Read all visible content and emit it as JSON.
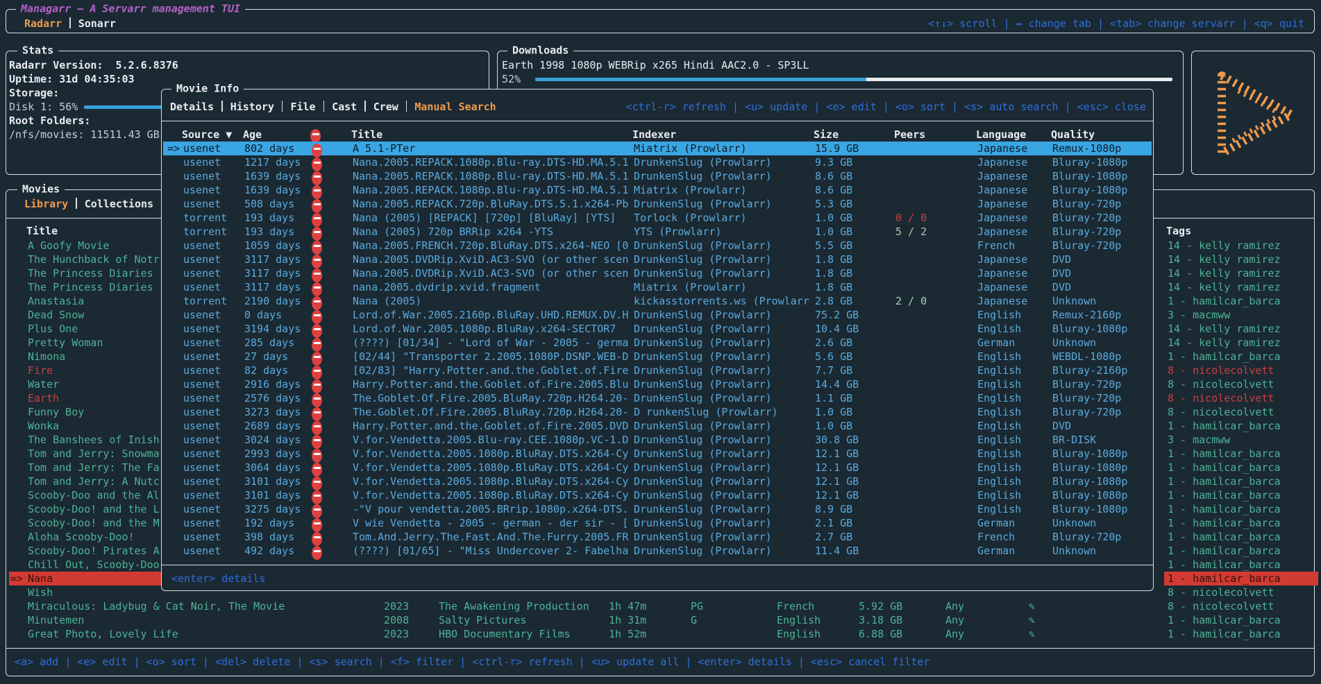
{
  "colors": {
    "background": "#1b2933",
    "border": "#d9dfe4",
    "accent_orange": "#f09b4b",
    "keybind_blue": "#2f6fdb",
    "row_blue": "#5aabdd",
    "selected_row_bg": "#3aa5e3",
    "teal": "#4db397",
    "red": "#c64242",
    "selected_missing_bg": "#d23b32",
    "magenta": "#b561c9",
    "progress_blue": "#38a0d9"
  },
  "top_bar": {
    "title": "Managarr – A Servarr management TUI",
    "tabs": [
      {
        "label": "Radarr",
        "active": true
      },
      {
        "label": "Sonarr",
        "active": false
      }
    ],
    "help": "<↑↓> scroll | ↔ change tab | <tab> change servarr | <q> quit"
  },
  "stats": {
    "panel_title": "Stats",
    "version_label": "Radarr Version:",
    "version_value": "5.2.6.8376",
    "uptime_label": "Uptime:",
    "uptime_value": "31d 04:35:03",
    "storage_label": "Storage:",
    "disk_label": "Disk 1: 56%",
    "disk_percent": 56,
    "root_folders_label": "Root Folders:",
    "root_folder_value": "/nfs/movies: 11511.43 GB"
  },
  "downloads": {
    "panel_title": "Downloads",
    "item_title": "Earth 1998 1080p WEBRip x265 Hindi AAC2.0 - SP3LL",
    "progress_label": "52%",
    "progress_percent": 52
  },
  "logo_icon": "managarr-play-logo",
  "movies_panel": {
    "panel_title": "Movies",
    "tabs": [
      {
        "label": "Library",
        "active": true
      },
      {
        "label": "Collections",
        "active": false
      }
    ],
    "columns": {
      "title": "Title",
      "tags": "Tags"
    },
    "help": "<a> add | <e> edit | <o> sort | <del> delete | <s> search | <f> filter | <ctrl-r> refresh | <u> update all | <enter> details | <esc> cancel filter",
    "rows": [
      {
        "title": "A Goofy Movie",
        "tag": "14 - kelly ramirez"
      },
      {
        "title": "The Hunchback of Notr",
        "tag": "14 - kelly ramirez"
      },
      {
        "title": "The Princess Diaries",
        "tag": "14 - kelly ramirez"
      },
      {
        "title": "The Princess Diaries",
        "tag": "14 - kelly ramirez"
      },
      {
        "title": "Anastasia",
        "tag": "1 - hamilcar_barca"
      },
      {
        "title": "Dead Snow",
        "tag": "3 - macmww"
      },
      {
        "title": "Plus One",
        "tag": "14 - kelly ramirez"
      },
      {
        "title": "Pretty Woman",
        "tag": "14 - kelly ramirez"
      },
      {
        "title": "Nimona",
        "tag": "1 - hamilcar_barca"
      },
      {
        "title": "Fire",
        "missing": true,
        "tag": "8 - nicolecolvett",
        "tag_missing": true
      },
      {
        "title": "Water",
        "tag": "8 - nicolecolvett"
      },
      {
        "title": "Earth",
        "missing": true,
        "tag": "8 - nicolecolvett",
        "tag_missing": true
      },
      {
        "title": "Funny Boy",
        "tag": "8 - nicolecolvett"
      },
      {
        "title": "Wonka",
        "tag": "1 - hamilcar_barca"
      },
      {
        "title": "The Banshees of Inish",
        "tag": "3 - macmww"
      },
      {
        "title": "Tom and Jerry: Snowma",
        "tag": "1 - hamilcar_barca"
      },
      {
        "title": "Tom and Jerry: The Fa",
        "tag": "1 - hamilcar_barca"
      },
      {
        "title": "Tom and Jerry: A Nutc",
        "tag": "1 - hamilcar_barca"
      },
      {
        "title": "Scooby-Doo and the Al",
        "tag": "1 - hamilcar_barca"
      },
      {
        "title": "Scooby-Doo! and the L",
        "tag": "1 - hamilcar_barca"
      },
      {
        "title": "Scooby-Doo! and the M",
        "tag": "1 - hamilcar_barca"
      },
      {
        "title": "Aloha Scooby-Doo!",
        "tag": "1 - hamilcar_barca"
      },
      {
        "title": "Scooby-Doo! Pirates A",
        "tag": "1 - hamilcar_barca"
      },
      {
        "title": "Chill Out, Scooby-Doo",
        "tag": "1 - hamilcar_barca"
      },
      {
        "title": "Nana",
        "selected": true,
        "tag": "1 - hamilcar_barca"
      },
      {
        "title": "Wish",
        "tag": "8 - nicolecolvett"
      },
      {
        "title": "Miraculous: Ladybug & Cat Noir, The Movie",
        "year": "2023",
        "studio": "The Awakening Production",
        "runtime": "1h 47m",
        "certification": "PG",
        "language": "French",
        "size": "5.92 GB",
        "quality_profile": "Any",
        "monitored": true,
        "tag": "8 - nicolecolvett"
      },
      {
        "title": "Minutemen",
        "year": "2008",
        "studio": "Salty Pictures",
        "runtime": "1h 31m",
        "certification": "G",
        "language": "English",
        "size": "3.18 GB",
        "quality_profile": "Any",
        "monitored": true,
        "tag": "1 - hamilcar_barca"
      },
      {
        "title": "Great Photo, Lovely Life",
        "year": "2023",
        "studio": "HBO Documentary Films",
        "runtime": "1h 52m",
        "certification": "",
        "language": "English",
        "size": "6.88 GB",
        "quality_profile": "Any",
        "monitored": true,
        "tag": "1 - hamilcar_barca"
      }
    ]
  },
  "movie_info_modal": {
    "title": "Movie Info",
    "tabs": [
      {
        "label": "Details",
        "active": false
      },
      {
        "label": "History",
        "active": false
      },
      {
        "label": "File",
        "active": false
      },
      {
        "label": "Cast",
        "active": false
      },
      {
        "label": "Crew",
        "active": false
      },
      {
        "label": "Manual Search",
        "active": true
      }
    ],
    "help": "<ctrl-r> refresh | <u> update | <e> edit | <o> sort | <s> auto search | <esc> close",
    "footer_help": "<enter> details",
    "columns": {
      "source": "Source ▼",
      "age": "Age",
      "rejected": "rejected-icon",
      "title": "Title",
      "indexer": "Indexer",
      "size": "Size",
      "peers": "Peers",
      "language": "Language",
      "quality": "Quality"
    },
    "rows": [
      {
        "source": "usenet",
        "age": "802 days",
        "title": "A 5.1-PTer",
        "indexer": "Miatrix (Prowlarr)",
        "size": "15.9 GB",
        "peers": "",
        "language": "Japanese",
        "quality": "Remux-1080p",
        "selected": true
      },
      {
        "source": "usenet",
        "age": "1217 days",
        "title": "Nana.2005.REPACK.1080p.Blu-ray.DTS-HD.MA.5.1",
        "indexer": "DrunkenSlug (Prowlarr)",
        "size": "9.3 GB",
        "peers": "",
        "language": "Japanese",
        "quality": "Bluray-1080p"
      },
      {
        "source": "usenet",
        "age": "1639 days",
        "title": "Nana.2005.REPACK.1080p.Blu-ray.DTS-HD.MA.5.1",
        "indexer": "DrunkenSlug (Prowlarr)",
        "size": "8.6 GB",
        "peers": "",
        "language": "Japanese",
        "quality": "Bluray-1080p"
      },
      {
        "source": "usenet",
        "age": "1639 days",
        "title": "Nana.2005.REPACK.1080p.Blu-ray.DTS-HD.MA.5.1",
        "indexer": "Miatrix (Prowlarr)",
        "size": "8.6 GB",
        "peers": "",
        "language": "Japanese",
        "quality": "Bluray-1080p"
      },
      {
        "source": "usenet",
        "age": "508 days",
        "title": "Nana.2005.REPACK.720p.BluRay.DTS.5.1.x264-Pb",
        "indexer": "DrunkenSlug (Prowlarr)",
        "size": "5.3 GB",
        "peers": "",
        "language": "Japanese",
        "quality": "Bluray-720p"
      },
      {
        "source": "torrent",
        "age": "193 days",
        "title": "Nana (2005) [REPACK] [720p] [BluRay] [YTS]",
        "indexer": "Torlock (Prowlarr)",
        "size": "1.0 GB",
        "peers": "0 / 0",
        "peers_state": "bad",
        "language": "Japanese",
        "quality": "Bluray-720p"
      },
      {
        "source": "torrent",
        "age": "193 days",
        "title": "Nana (2005) 720p BRRip x264 -YTS",
        "indexer": "YTS (Prowlarr)",
        "size": "1.0 GB",
        "peers": "5 / 2",
        "peers_state": "ok",
        "language": "Japanese",
        "quality": "Bluray-720p"
      },
      {
        "source": "usenet",
        "age": "1059 days",
        "title": "Nana.2005.FRENCH.720p.BluRay.DTS.x264-NEO [0",
        "indexer": "DrunkenSlug (Prowlarr)",
        "size": "5.5 GB",
        "peers": "",
        "language": "French",
        "quality": "Bluray-720p"
      },
      {
        "source": "usenet",
        "age": "3117 days",
        "title": "Nana.2005.DVDRip.XviD.AC3-SVO (or other scen",
        "indexer": "DrunkenSlug (Prowlarr)",
        "size": "1.8 GB",
        "peers": "",
        "language": "Japanese",
        "quality": "DVD"
      },
      {
        "source": "usenet",
        "age": "3117 days",
        "title": "Nana.2005.DVDRip.XviD.AC3-SVO (or other scen",
        "indexer": "DrunkenSlug (Prowlarr)",
        "size": "1.8 GB",
        "peers": "",
        "language": "Japanese",
        "quality": "DVD"
      },
      {
        "source": "usenet",
        "age": "3117 days",
        "title": "nana.2005.dvdrip.xvid.fragment",
        "indexer": "Miatrix (Prowlarr)",
        "size": "1.8 GB",
        "peers": "",
        "language": "Japanese",
        "quality": "DVD"
      },
      {
        "source": "torrent",
        "age": "2190 days",
        "title": "Nana (2005)",
        "indexer": "kickasstorrents.ws (Prowlarr",
        "size": "2.8 GB",
        "peers": "2 / 0",
        "peers_state": "ok",
        "language": "Japanese",
        "quality": "Unknown"
      },
      {
        "source": "usenet",
        "age": "0 days",
        "title": "Lord.of.War.2005.2160p.BluRay.UHD.REMUX.DV.H",
        "indexer": "DrunkenSlug (Prowlarr)",
        "size": "75.2 GB",
        "peers": "",
        "language": "English",
        "quality": "Remux-2160p"
      },
      {
        "source": "usenet",
        "age": "3194 days",
        "title": "Lord.of.War.2005.1080p.BluRay.x264-SECTOR7",
        "indexer": "DrunkenSlug (Prowlarr)",
        "size": "10.4 GB",
        "peers": "",
        "language": "English",
        "quality": "Bluray-1080p"
      },
      {
        "source": "usenet",
        "age": "285 days",
        "title": "(????) [01/34] - \"Lord of War - 2005 - germa",
        "indexer": "DrunkenSlug (Prowlarr)",
        "size": "2.6 GB",
        "peers": "",
        "language": "German",
        "quality": "Unknown"
      },
      {
        "source": "usenet",
        "age": "27 days",
        "title": "[02/44] \"Transporter 2.2005.1080P.DSNP.WEB-D",
        "indexer": "DrunkenSlug (Prowlarr)",
        "size": "5.6 GB",
        "peers": "",
        "language": "English",
        "quality": "WEBDL-1080p"
      },
      {
        "source": "usenet",
        "age": "82 days",
        "title": "[02/83] \"Harry.Potter.and.the.Goblet.of.Fire",
        "indexer": "DrunkenSlug (Prowlarr)",
        "size": "7.7 GB",
        "peers": "",
        "language": "English",
        "quality": "Bluray-2160p"
      },
      {
        "source": "usenet",
        "age": "2916 days",
        "title": "Harry.Potter.and.the.Goblet.of.Fire.2005.Blu",
        "indexer": "DrunkenSlug (Prowlarr)",
        "size": "14.4 GB",
        "peers": "",
        "language": "English",
        "quality": "Bluray-720p"
      },
      {
        "source": "usenet",
        "age": "2576 days",
        "title": "The.Goblet.Of.Fire.2005.BluRay.720p.H264.20-",
        "indexer": "DrunkenSlug (Prowlarr)",
        "size": "1.1 GB",
        "peers": "",
        "language": "English",
        "quality": "Bluray-720p"
      },
      {
        "source": "usenet",
        "age": "3273 days",
        "title": "The.Goblet.Of.Fire.2005.BluRay.720p.H264.20-",
        "indexer": "D runkenSlug (Prowlarr)",
        "size": "1.0 GB",
        "peers": "",
        "language": "English",
        "quality": "Bluray-720p"
      },
      {
        "source": "usenet",
        "age": "2689 days",
        "title": "Harry.Potter.and.the.Goblet.of.Fire.2005.DVD",
        "indexer": "DrunkenSlug (Prowlarr)",
        "size": "1.0 GB",
        "peers": "",
        "language": "English",
        "quality": "DVD"
      },
      {
        "source": "usenet",
        "age": "3024 days",
        "title": "V.for.Vendetta.2005.Blu-ray.CEE.1080p.VC-1.D",
        "indexer": "DrunkenSlug (Prowlarr)",
        "size": "30.8 GB",
        "peers": "",
        "language": "English",
        "quality": "BR-DISK"
      },
      {
        "source": "usenet",
        "age": "2993 days",
        "title": "V.for.Vendetta.2005.1080p.BluRay.DTS.x264-Cy",
        "indexer": "DrunkenSlug (Prowlarr)",
        "size": "12.1 GB",
        "peers": "",
        "language": "English",
        "quality": "Bluray-1080p"
      },
      {
        "source": "usenet",
        "age": "3064 days",
        "title": "V.for.Vendetta.2005.1080p.BluRay.DTS.x264-Cy",
        "indexer": "DrunkenSlug (Prowlarr)",
        "size": "12.1 GB",
        "peers": "",
        "language": "English",
        "quality": "Bluray-1080p"
      },
      {
        "source": "usenet",
        "age": "3101 days",
        "title": "V.for.Vendetta.2005.1080p.BluRay.DTS.x264-Cy",
        "indexer": "DrunkenSlug (Prowlarr)",
        "size": "12.1 GB",
        "peers": "",
        "language": "English",
        "quality": "Bluray-1080p"
      },
      {
        "source": "usenet",
        "age": "3101 days",
        "title": "V.for.Vendetta.2005.1080p.BluRay.DTS.x264-Cy",
        "indexer": "DrunkenSlug (Prowlarr)",
        "size": "12.1 GB",
        "peers": "",
        "language": "English",
        "quality": "Bluray-1080p"
      },
      {
        "source": "usenet",
        "age": "3275 days",
        "title": "-\"V pour vendetta.2005.BRrip.1080p.x264-DTS.",
        "indexer": "DrunkenSlug (Prowlarr)",
        "size": "8.9 GB",
        "peers": "",
        "language": "English",
        "quality": "Bluray-1080p"
      },
      {
        "source": "usenet",
        "age": "192 days",
        "title": "V wie Vendetta - 2005 - german - der sir - [",
        "indexer": "DrunkenSlug (Prowlarr)",
        "size": "2.1 GB",
        "peers": "",
        "language": "German",
        "quality": "Unknown"
      },
      {
        "source": "usenet",
        "age": "398 days",
        "title": "Tom.And.Jerry.The.Fast.And.The.Furry.2005.FR",
        "indexer": "DrunkenSlug (Prowlarr)",
        "size": "2.7 GB",
        "peers": "",
        "language": "French",
        "quality": "Bluray-720p"
      },
      {
        "source": "usenet",
        "age": "492 days",
        "title": "(????) [01/65] - \"Miss Undercover 2- Fabelha",
        "indexer": "DrunkenSlug (Prowlarr)",
        "size": "11.4 GB",
        "peers": "",
        "language": "German",
        "quality": "Unknown"
      }
    ]
  }
}
